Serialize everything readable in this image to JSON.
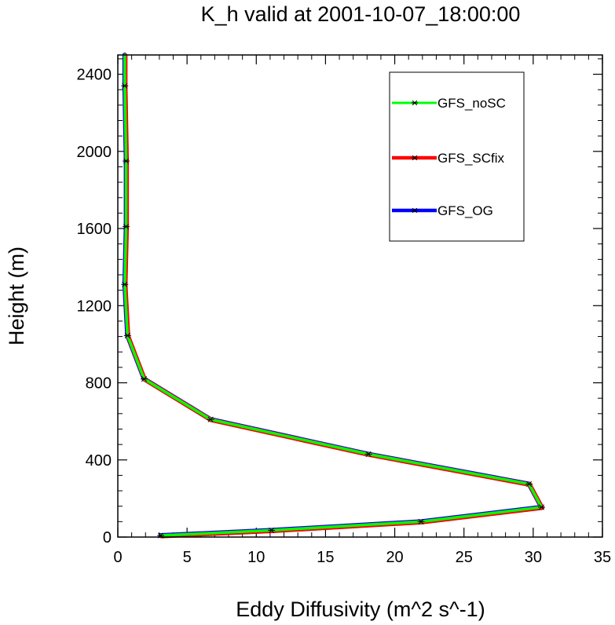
{
  "chart_data": {
    "type": "line",
    "title": "K_h valid at 2001-10-07_18:00:00",
    "xlabel": "Eddy Diffusivity (m^2 s^-1)",
    "ylabel": "Height (m)",
    "xlim": [
      0,
      35
    ],
    "ylim": [
      0,
      2500
    ],
    "xticks": [
      "0",
      "5",
      "10",
      "15",
      "20",
      "25",
      "30",
      "35"
    ],
    "yticks": [
      "0",
      "400",
      "800",
      "1200",
      "1600",
      "2000",
      "2400"
    ],
    "grid": false,
    "legend": "top-right",
    "marker": "asterisk",
    "series": [
      {
        "name": "GFS_OG",
        "color": "#0000ff",
        "x": [
          3.1,
          11.1,
          21.9,
          30.6,
          29.7,
          18.1,
          6.7,
          1.9,
          0.7,
          0.5,
          0.6,
          0.6,
          0.5,
          0.5
        ],
        "y": [
          8,
          35,
          80,
          155,
          275,
          430,
          610,
          820,
          1045,
          1310,
          1610,
          1950,
          2340,
          2500
        ]
      },
      {
        "name": "GFS_SCfix",
        "color": "#ff0000",
        "x": [
          3.1,
          11.1,
          21.9,
          30.6,
          29.7,
          18.1,
          6.7,
          1.9,
          0.7,
          0.5,
          0.6,
          0.6,
          0.5,
          0.5
        ],
        "y": [
          8,
          35,
          80,
          155,
          275,
          430,
          610,
          820,
          1045,
          1310,
          1610,
          1950,
          2340,
          2500
        ]
      },
      {
        "name": "GFS_noSC",
        "color": "#00ff00",
        "x": [
          3.1,
          11.1,
          21.9,
          30.6,
          29.7,
          18.1,
          6.7,
          1.9,
          0.7,
          0.5,
          0.6,
          0.6,
          0.5,
          0.5
        ],
        "y": [
          8,
          35,
          80,
          155,
          275,
          430,
          610,
          820,
          1045,
          1310,
          1610,
          1950,
          2340,
          2500
        ]
      }
    ],
    "legend_entries": [
      {
        "label": "GFS_noSC",
        "color": "#00ff00"
      },
      {
        "label": "GFS_SCfix",
        "color": "#ff0000"
      },
      {
        "label": "GFS_OG",
        "color": "#0000ff"
      }
    ]
  }
}
